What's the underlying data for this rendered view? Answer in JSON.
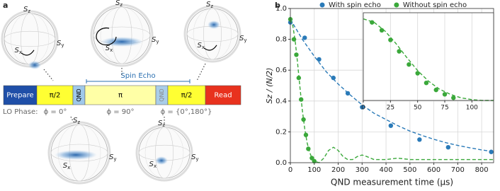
{
  "panel_a": {
    "label": "a",
    "spin_echo": "Spin Echo",
    "pulses": [
      "Prepare",
      "π/2",
      "QND",
      "π",
      "QND",
      "π/2",
      "Read"
    ],
    "lo_phase": "LO Phase:",
    "phases": [
      "ϕ = 0°",
      "ϕ = 90°",
      "ϕ = {0°,180°}"
    ],
    "spheres": [
      {
        "labels": [
          "Sz",
          "Sy",
          "Sx"
        ]
      },
      {
        "labels": [
          "Sz",
          "Sy",
          "Sx"
        ]
      },
      {
        "labels": [
          "Sz",
          "Sy",
          "Sx"
        ]
      },
      {
        "labels": [
          "Sz",
          "Sy",
          "Sx"
        ]
      },
      {
        "labels": [
          "Sz",
          "Sy",
          "Sx"
        ]
      }
    ]
  },
  "chart_data": [
    {
      "type": "scatter",
      "panel_label": "b",
      "xlabel": "QND measurement time (μs)",
      "ylabel": "Sz / (N/2)",
      "xlim": [
        0,
        850
      ],
      "xticks": [
        0,
        100,
        200,
        300,
        400,
        500,
        600,
        700,
        800
      ],
      "ylim": [
        0,
        1
      ],
      "yticks": [
        {
          "value": 0,
          "label": "0.0"
        },
        {
          "value": 0.2,
          "label": "0.2"
        },
        {
          "value": 0.4,
          "label": "0.4"
        },
        {
          "value": 0.6,
          "label": "0.6"
        },
        {
          "value": 0.8,
          "label": "0.8"
        },
        {
          "value": 1,
          "label": "1.0"
        }
      ],
      "grid": true,
      "legend": "top",
      "series": [
        {
          "name": "With spin echo",
          "color": "#2a7ab8",
          "mode": "markers",
          "x": [
            0,
            60,
            120,
            180,
            240,
            300,
            420,
            540,
            660,
            840
          ],
          "values": [
            0.91,
            0.81,
            0.67,
            0.55,
            0.45,
            0.36,
            0.24,
            0.15,
            0.1,
            0.07
          ]
        },
        {
          "name": "Without spin echo",
          "color": "#3aa83a",
          "mode": "markers",
          "x": [
            0,
            15,
            25,
            35,
            45,
            55,
            65,
            75,
            90,
            100
          ],
          "values": [
            0.93,
            0.8,
            0.7,
            0.55,
            0.41,
            0.28,
            0.18,
            0.09,
            0.03,
            0.01
          ]
        },
        {
          "color": "#2a7ab8",
          "mode": "dashed",
          "x": [
            0,
            50,
            100,
            150,
            200,
            250,
            300,
            350,
            400,
            450,
            500,
            550,
            600,
            650,
            700,
            750,
            800,
            850
          ],
          "values": [
            0.93,
            0.8,
            0.69,
            0.59,
            0.51,
            0.44,
            0.375,
            0.32,
            0.28,
            0.24,
            0.205,
            0.177,
            0.152,
            0.13,
            0.112,
            0.097,
            0.083,
            0.072
          ]
        },
        {
          "color": "#3aa83a",
          "mode": "dashed",
          "x": [
            0,
            10,
            20,
            30,
            40,
            50,
            60,
            70,
            80,
            90,
            100,
            120,
            140,
            160,
            180,
            200,
            220,
            240,
            260,
            280,
            300,
            320,
            350,
            400,
            450,
            500,
            600,
            700,
            850
          ],
          "values": [
            0.93,
            0.89,
            0.79,
            0.65,
            0.49,
            0.34,
            0.22,
            0.13,
            0.07,
            0.03,
            0.01,
            0.0,
            0.03,
            0.08,
            0.1,
            0.08,
            0.04,
            0.02,
            0.02,
            0.04,
            0.05,
            0.04,
            0.02,
            0.02,
            0.03,
            0.02,
            0.02,
            0.02,
            0.02
          ]
        }
      ]
    },
    {
      "type": "scatter",
      "xlim": [
        0,
        120
      ],
      "xticks": [
        0,
        25,
        50,
        75,
        100
      ],
      "ylim": [
        0,
        1
      ],
      "grid": true,
      "series": [
        {
          "color": "#3aa83a",
          "mode": "markers",
          "x": [
            8,
            17,
            25,
            33,
            42,
            50,
            58,
            67,
            75,
            83
          ],
          "values": [
            0.89,
            0.8,
            0.69,
            0.56,
            0.41,
            0.31,
            0.2,
            0.12,
            0.07,
            0.03
          ]
        },
        {
          "color": "#3aa83a",
          "mode": "dashed",
          "x": [
            0,
            10,
            20,
            30,
            40,
            50,
            60,
            70,
            80,
            90,
            100,
            110,
            120
          ],
          "values": [
            0.93,
            0.89,
            0.79,
            0.65,
            0.49,
            0.34,
            0.22,
            0.13,
            0.07,
            0.03,
            0.01,
            0.0,
            0.0
          ]
        }
      ]
    }
  ]
}
